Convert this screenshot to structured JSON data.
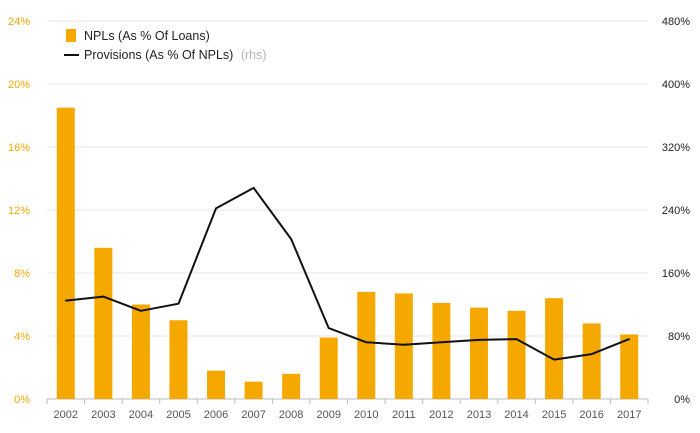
{
  "chart_data": {
    "type": "bar",
    "categories": [
      "2002",
      "2003",
      "2004",
      "2005",
      "2006",
      "2007",
      "2008",
      "2009",
      "2010",
      "2011",
      "2012",
      "2013",
      "2014",
      "2015",
      "2016",
      "2017"
    ],
    "series": [
      {
        "name": "NPLs (As % Of Loans)",
        "type": "bar",
        "axis": "left",
        "color": "#f5a800",
        "values": [
          18.5,
          9.6,
          6.0,
          5.0,
          1.8,
          1.1,
          1.6,
          3.9,
          6.8,
          6.7,
          6.1,
          5.8,
          5.6,
          6.4,
          4.8,
          4.1
        ]
      },
      {
        "name": "Provisions (As % Of NPLs)",
        "note": "(rhs)",
        "type": "line",
        "axis": "right",
        "color": "#111111",
        "values": [
          125,
          130,
          112,
          121,
          242,
          268,
          203,
          90,
          72,
          69,
          72,
          75,
          76,
          50,
          57,
          76
        ]
      }
    ],
    "left_axis": {
      "ylim": [
        0,
        24
      ],
      "ticks": [
        "0%",
        "4%",
        "8%",
        "12%",
        "16%",
        "20%",
        "24%"
      ]
    },
    "right_axis": {
      "ylim": [
        0,
        480
      ],
      "ticks": [
        "0%",
        "80%",
        "160%",
        "240%",
        "320%",
        "400%",
        "480%"
      ]
    },
    "grid": true,
    "legend_position": "top-left"
  }
}
